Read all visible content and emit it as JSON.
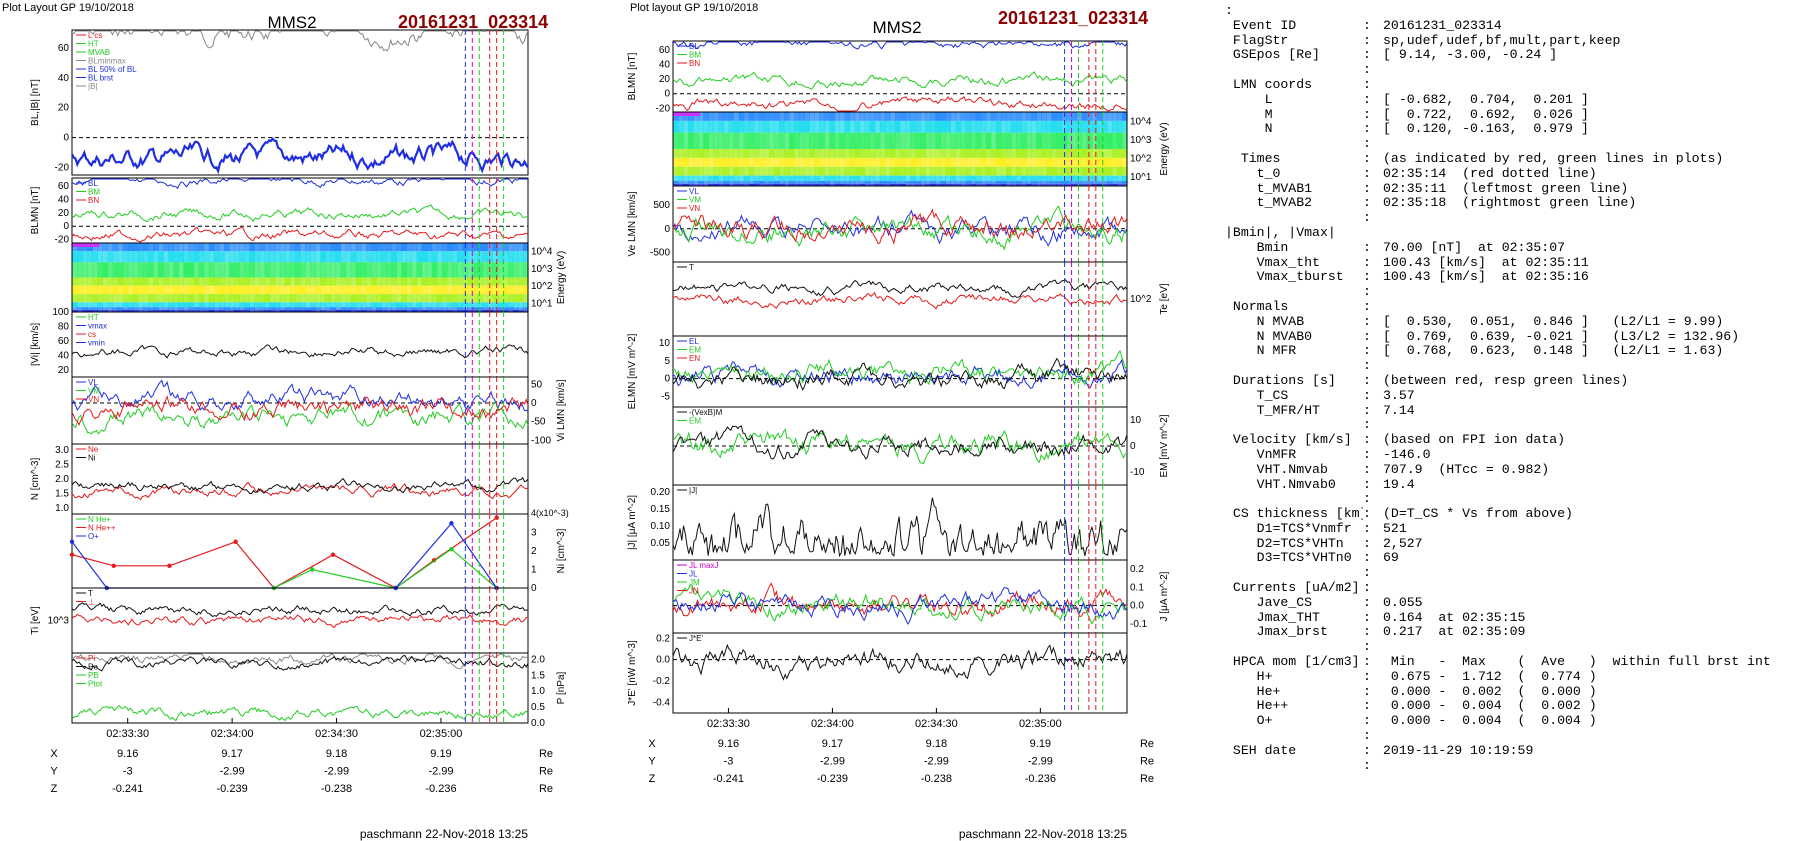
{
  "colors": {
    "red": "#e41a1c",
    "green": "#22cc22",
    "blue": "#1f2fe0",
    "black": "#111111",
    "magenta": "#cc00cc",
    "title_red": "#8b0000",
    "gray": "#888888"
  },
  "left": {
    "header": "Plot Layout GP 19/10/2018",
    "spacecraft": "MMS2",
    "event": "20161231_023314",
    "footer": "paschmann 22-Nov-2018 13:25"
  },
  "right": {
    "header": "Plot layout GP 19/10/2018",
    "spacecraft": "MMS2",
    "event": "20161231_023314",
    "footer": "paschmann 22-Nov-2018 13:25"
  },
  "chart_data": [
    {
      "id": "left-column",
      "type": "line",
      "time_axis": {
        "ticks": [
          "02:33:30",
          "02:34:00",
          "02:34:30",
          "02:35:00"
        ],
        "range": [
          "02:33:14",
          "02:35:25"
        ]
      },
      "event_lines": [
        "02:35:07",
        "02:35:09",
        "02:35:11",
        "02:35:14",
        "02:35:16",
        "02:35:18"
      ],
      "ephemeris": {
        "labels": [
          "X",
          "Y",
          "Z"
        ],
        "unit": "Re",
        "values": [
          [
            "9.16",
            "9.17",
            "9.18",
            "9.19"
          ],
          [
            "-3",
            "-2.99",
            "-2.99",
            "-2.99"
          ],
          [
            "-0.241",
            "-0.239",
            "-0.238",
            "-0.236"
          ]
        ]
      },
      "panels": [
        {
          "ylabel": "BL,|B| [nT]",
          "yticks": [
            "60",
            "40",
            "20",
            "0",
            "-20"
          ],
          "ylim": [
            -25,
            72
          ],
          "legend": [
            "L  cs",
            "HT",
            "MVAB",
            "BLminmax",
            "BL 50% of BL",
            "BL brst",
            "|B|"
          ],
          "series": [
            {
              "name": "|B|",
              "level": 70
            },
            {
              "name": "BL",
              "level": -14
            }
          ]
        },
        {
          "ylabel": "BLMN [nT]",
          "yticks": [
            "60",
            "40",
            "20",
            "0",
            "-20"
          ],
          "ylim": [
            -25,
            72
          ],
          "legend": [
            "BL",
            "BM",
            "BN"
          ],
          "series": [
            {
              "name": "BL",
              "level": 68
            },
            {
              "name": "BM",
              "level": 18
            },
            {
              "name": "BN",
              "level": -14
            }
          ]
        },
        {
          "ylabel": "Energy (eV)",
          "type": "heatmap",
          "yticks": [
            "10^4",
            "10^3",
            "10^2",
            "10^1"
          ]
        },
        {
          "ylabel": "|Vi| [km/s]",
          "yticks": [
            "100",
            "80",
            "60",
            "40",
            "20"
          ],
          "ylim": [
            10,
            100
          ],
          "legend": [
            "HT",
            "vmax",
            "cs",
            "vmin"
          ],
          "series": [
            {
              "name": "|Vi|",
              "level": 45
            }
          ]
        },
        {
          "ylabel": "Vi LMN [km/s]",
          "yticks": [
            "50",
            "0",
            "-50",
            "-100"
          ],
          "ylim": [
            -110,
            70
          ],
          "legend": [
            "VL",
            "VM",
            "VN"
          ],
          "series": [
            {
              "name": "VL",
              "level": 10
            },
            {
              "name": "VM",
              "level": -40
            },
            {
              "name": "VN",
              "level": -15
            }
          ]
        },
        {
          "ylabel": "N [cm^-3]",
          "yticks": [
            "3.0",
            "2.5",
            "2.0",
            "1.5",
            "1.0"
          ],
          "ylim": [
            0.8,
            3.2
          ],
          "legend": [
            "Ne",
            "Ni"
          ],
          "series": [
            {
              "name": "Ne",
              "level": 1.6
            },
            {
              "name": "Ni",
              "level": 1.75
            }
          ]
        },
        {
          "ylabel": "Ni [cm^-3]",
          "yunit": "4(x10^-3)",
          "yticks": [
            "3",
            "2",
            "1",
            "0"
          ],
          "ylim": [
            0,
            4
          ],
          "legend": [
            "N He+",
            "N He++",
            "O+"
          ],
          "series": [
            {
              "name": "He++",
              "x": [
                "02:33:14",
                "02:33:26",
                "02:33:42",
                "02:34:01",
                "02:34:12",
                "02:34:29",
                "02:34:47",
                "02:34:58",
                "02:35:16"
              ],
              "values": [
                1.8,
                1.2,
                1.2,
                2.5,
                0,
                1.8,
                0,
                1.5,
                3.8
              ]
            },
            {
              "name": "He+",
              "x": [
                "02:34:12",
                "02:34:23",
                "02:34:47",
                "02:35:03",
                "02:35:16"
              ],
              "values": [
                0,
                1.0,
                0,
                2.1,
                0
              ]
            },
            {
              "name": "O+",
              "x": [
                "02:33:14",
                "02:33:24",
                "02:34:47",
                "02:35:03",
                "02:35:16"
              ],
              "values": [
                2.5,
                0,
                0,
                3.5,
                0
              ]
            }
          ]
        },
        {
          "ylabel": "Ti [eV]",
          "yticks": [
            "10^3"
          ],
          "legend": [
            "T",
            "⊥"
          ],
          "series": [
            {
              "name": "T||",
              "level": 900
            },
            {
              "name": "T⊥",
              "level": 700
            }
          ]
        },
        {
          "ylabel": "P [nPa]",
          "yticks": [
            "2.0",
            "1.5",
            "1.0",
            "0.5",
            "0.0"
          ],
          "ylim": [
            0,
            2.2
          ],
          "legend": [
            "Pi",
            "Pe",
            "PB",
            "Ptot"
          ],
          "series": [
            {
              "name": "Ptot",
              "level": 2.0
            },
            {
              "name": "Pi",
              "level": 1.9
            },
            {
              "name": "PB",
              "level": 0.3
            }
          ]
        }
      ]
    },
    {
      "id": "right-column",
      "type": "line",
      "time_axis": {
        "ticks": [
          "02:33:30",
          "02:34:00",
          "02:34:30",
          "02:35:00"
        ],
        "range": [
          "02:33:14",
          "02:35:25"
        ]
      },
      "event_lines": [
        "02:35:07",
        "02:35:09",
        "02:35:11",
        "02:35:14",
        "02:35:16",
        "02:35:18"
      ],
      "ephemeris": {
        "labels": [
          "X",
          "Y",
          "Z"
        ],
        "unit": "Re",
        "values": [
          [
            "9.16",
            "9.17",
            "9.18",
            "9.19"
          ],
          [
            "-3",
            "-2.99",
            "-2.99",
            "-2.99"
          ],
          [
            "-0.241",
            "-0.239",
            "-0.238",
            "-0.236"
          ]
        ]
      },
      "panels": [
        {
          "ylabel": "BLMN [nT]",
          "yticks": [
            "60",
            "40",
            "20",
            "0",
            "-20"
          ],
          "ylim": [
            -25,
            72
          ],
          "legend": [
            "BL",
            "BM",
            "BN"
          ],
          "series": [
            {
              "name": "BL",
              "level": 68
            },
            {
              "name": "BM",
              "level": 18
            },
            {
              "name": "BN",
              "level": -14
            }
          ]
        },
        {
          "ylabel": "Energy (eV)",
          "type": "heatmap",
          "yticks": [
            "10^4",
            "10^3",
            "10^2",
            "10^1"
          ]
        },
        {
          "ylabel": "Ve LMN [km/s]",
          "yticks": [
            "500",
            "0",
            "-500"
          ],
          "ylim": [
            -700,
            900
          ],
          "legend": [
            "VL",
            "VM",
            "VN"
          ],
          "series": [
            {
              "name": "VL",
              "level": 0
            },
            {
              "name": "VM",
              "level": 0
            },
            {
              "name": "VN",
              "level": 0
            }
          ]
        },
        {
          "ylabel": "Te [eV]",
          "yticks": [
            "10^2"
          ],
          "legend": [
            "T"
          ],
          "series": [
            {
              "name": "T||",
              "level": 60
            },
            {
              "name": "T⊥",
              "level": 40
            }
          ]
        },
        {
          "ylabel": "ELMN [mV m^-2]",
          "yticks": [
            "10",
            "5",
            "0",
            "-5"
          ],
          "ylim": [
            -8,
            12
          ],
          "legend": [
            "EL",
            "EM",
            "EN"
          ],
          "series": [
            {
              "name": "EL",
              "level": 1
            },
            {
              "name": "EM",
              "level": 2
            },
            {
              "name": "EN",
              "level": 0
            }
          ]
        },
        {
          "ylabel": "EM [mV m^-2]",
          "yticks": [
            "10",
            "0",
            "-10"
          ],
          "ylim": [
            -15,
            15
          ],
          "legend": [
            "-(VexB)M",
            "EM"
          ],
          "series": [
            {
              "name": "EM",
              "level": 0
            },
            {
              "name": "-(VexB)M",
              "level": 0
            }
          ]
        },
        {
          "ylabel": "|J| [μA m^-2]",
          "yticks": [
            "0.20",
            "0.15",
            "0.10",
            "0.05"
          ],
          "ylim": [
            0,
            0.22
          ],
          "legend": [
            "|J|"
          ],
          "series": [
            {
              "name": "|J|",
              "level": 0.05
            }
          ]
        },
        {
          "ylabel": "J [μA m^-2]",
          "yticks": [
            "0.2",
            "0.1",
            "0.0",
            "-0.1"
          ],
          "ylim": [
            -0.15,
            0.25
          ],
          "legend": [
            "JL maxJ",
            "JL",
            "JM",
            "JN"
          ],
          "series": [
            {
              "name": "JL",
              "level": 0
            },
            {
              "name": "JM",
              "level": 0
            },
            {
              "name": "JN",
              "level": 0
            }
          ]
        },
        {
          "ylabel": "J*E' [nW m^-3]",
          "yticks": [
            "0.2",
            "0.0",
            "-0.2",
            "-0.4"
          ],
          "ylim": [
            -0.5,
            0.25
          ],
          "legend": [
            "J*E'"
          ],
          "series": [
            {
              "name": "J*E'",
              "level": 0
            }
          ]
        }
      ]
    }
  ],
  "info": [
    {
      "k": ":",
      "c": "",
      "v": ""
    },
    {
      "k": " Event ID",
      "c": ":",
      "v": "20161231_023314"
    },
    {
      "k": " FlagStr",
      "c": ":",
      "v": "sp,udef,udef,bf,mult,part,keep"
    },
    {
      "k": " GSEpos [Re]",
      "c": ":",
      "v": "[ 9.14, -3.00, -0.24 ]"
    },
    {
      "k": "",
      "c": ":",
      "v": ""
    },
    {
      "k": " LMN coords",
      "c": ":",
      "v": ""
    },
    {
      "k": "     L",
      "c": ":",
      "v": "[ -0.682,  0.704,  0.201 ]"
    },
    {
      "k": "     M",
      "c": ":",
      "v": "[  0.722,  0.692,  0.026 ]"
    },
    {
      "k": "     N",
      "c": ":",
      "v": "[  0.120, -0.163,  0.979 ]"
    },
    {
      "k": "",
      "c": ":",
      "v": ""
    },
    {
      "k": "  Times",
      "c": ":",
      "v": "(as indicated by red, green lines in plots)"
    },
    {
      "k": "    t_0",
      "c": ":",
      "v": "02:35:14  (red dotted line)"
    },
    {
      "k": "    t_MVAB1",
      "c": ":",
      "v": "02:35:11  (leftmost green line)"
    },
    {
      "k": "    t_MVAB2",
      "c": ":",
      "v": "02:35:18  (rightmost green line)"
    },
    {
      "k": "",
      "c": ":",
      "v": ""
    },
    {
      "k": "|Bmin|, |Vmax|",
      "c": "",
      "v": ""
    },
    {
      "k": "    Bmin",
      "c": ":",
      "v": "70.00 [nT]  at 02:35:07"
    },
    {
      "k": "    Vmax_tht",
      "c": ":",
      "v": "100.43 [km/s]  at 02:35:11"
    },
    {
      "k": "    Vmax_tburst",
      "c": ":",
      "v": "100.43 [km/s]  at 02:35:16"
    },
    {
      "k": "",
      "c": ":",
      "v": ""
    },
    {
      "k": " Normals",
      "c": ":",
      "v": ""
    },
    {
      "k": "    N MVAB",
      "c": ":",
      "v": "[  0.530,  0.051,  0.846 ]   (L2/L1 = 9.99)"
    },
    {
      "k": "    N MVAB0",
      "c": ":",
      "v": "[  0.769,  0.639, -0.021 ]   (L3/L2 = 132.96)"
    },
    {
      "k": "    N MFR",
      "c": ":",
      "v": "[  0.768,  0.623,  0.148 ]   (L2/L1 = 1.63)"
    },
    {
      "k": "",
      "c": ":",
      "v": ""
    },
    {
      "k": " Durations [s]",
      "c": ":",
      "v": "(between red, resp green lines)"
    },
    {
      "k": "    T_CS",
      "c": ":",
      "v": "3.57"
    },
    {
      "k": "    T_MFR/HT",
      "c": ":",
      "v": "7.14"
    },
    {
      "k": "",
      "c": ":",
      "v": ""
    },
    {
      "k": " Velocity [km/s]",
      "c": ":",
      "v": "(based on FPI ion data)"
    },
    {
      "k": "    VnMFR",
      "c": ":",
      "v": "-146.0"
    },
    {
      "k": "    VHT.Nmvab",
      "c": ":",
      "v": "707.9  (HTcc = 0.982)"
    },
    {
      "k": "    VHT.Nmvab0",
      "c": ":",
      "v": "19.4"
    },
    {
      "k": "",
      "c": ":",
      "v": ""
    },
    {
      "k": " CS thickness [km]",
      "c": ":",
      "v": "(D=T_CS * Vs from above)"
    },
    {
      "k": "    D1=TCS*Vnmfr",
      "c": ":",
      "v": "521"
    },
    {
      "k": "    D2=TCS*VHTn",
      "c": ":",
      "v": "2,527"
    },
    {
      "k": "    D3=TCS*VHTn0",
      "c": ":",
      "v": "69"
    },
    {
      "k": "",
      "c": ":",
      "v": ""
    },
    {
      "k": " Currents [uA/m2]",
      "c": ":",
      "v": ""
    },
    {
      "k": "    Jave_CS",
      "c": ":",
      "v": "0.055"
    },
    {
      "k": "    Jmax_THT",
      "c": ":",
      "v": "0.164  at 02:35:15"
    },
    {
      "k": "    Jmax_brst",
      "c": ":",
      "v": "0.217  at 02:35:09"
    },
    {
      "k": "",
      "c": ":",
      "v": ""
    },
    {
      "k": " HPCA mom [1/cm3]",
      "c": ":",
      "v": " Min   -  Max    (  Ave   )  within full brst int"
    },
    {
      "k": "    H+",
      "c": ":",
      "v": " 0.675 -  1.712  (  0.774 )"
    },
    {
      "k": "    He+",
      "c": ":",
      "v": " 0.000 -  0.002  (  0.000 )"
    },
    {
      "k": "    He++",
      "c": ":",
      "v": " 0.000 -  0.004  (  0.002 )"
    },
    {
      "k": "    O+",
      "c": ":",
      "v": " 0.000 -  0.004  (  0.004 )"
    },
    {
      "k": "",
      "c": ":",
      "v": ""
    },
    {
      "k": " SEH date",
      "c": ":",
      "v": "2019-11-29 10:19:59"
    },
    {
      "k": "",
      "c": ":",
      "v": ""
    }
  ]
}
